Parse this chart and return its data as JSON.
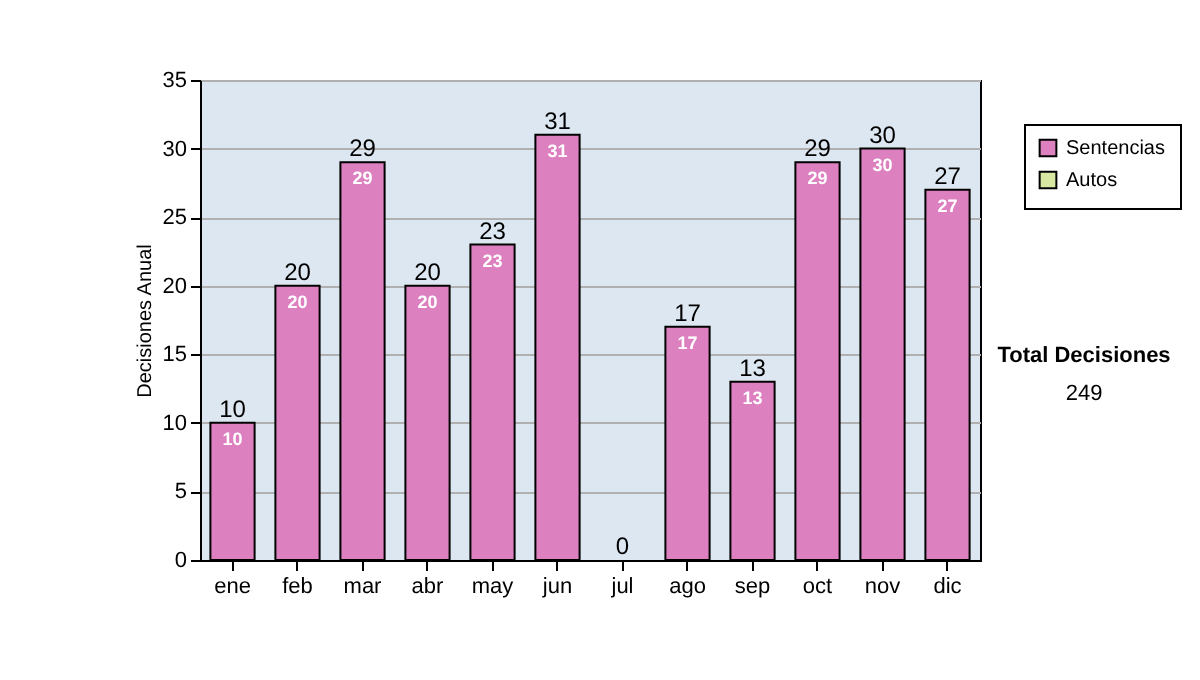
{
  "chart_data": {
    "type": "bar",
    "stacked": true,
    "ylabel": "Decisiones Anual",
    "categories": [
      "ene",
      "feb",
      "mar",
      "abr",
      "may",
      "jun",
      "jul",
      "ago",
      "sep",
      "oct",
      "nov",
      "dic"
    ],
    "series": [
      {
        "name": "Sentencias",
        "color": "#dd80c0",
        "values": [
          10,
          20,
          29,
          20,
          23,
          31,
          0,
          17,
          13,
          29,
          30,
          27
        ],
        "value_labels": [
          "10",
          "20",
          "29",
          "20",
          "23",
          "31",
          null,
          "17",
          "13",
          "29",
          "30",
          "27"
        ]
      },
      {
        "name": "Autos",
        "color": "#d8e8a0",
        "values": [
          0,
          0,
          0,
          0,
          0,
          0,
          0,
          0,
          0,
          0,
          0,
          0
        ]
      }
    ],
    "totals": [
      "10",
      "20",
      "29",
      "20",
      "23",
      "31",
      "0",
      "17",
      "13",
      "29",
      "30",
      "27"
    ],
    "ylim": [
      0,
      35
    ],
    "yticks": [
      0,
      5,
      10,
      15,
      20,
      25,
      30,
      35
    ],
    "grid": "y",
    "legend": "right",
    "annotations": [
      "Total Decisiones",
      "249"
    ]
  }
}
